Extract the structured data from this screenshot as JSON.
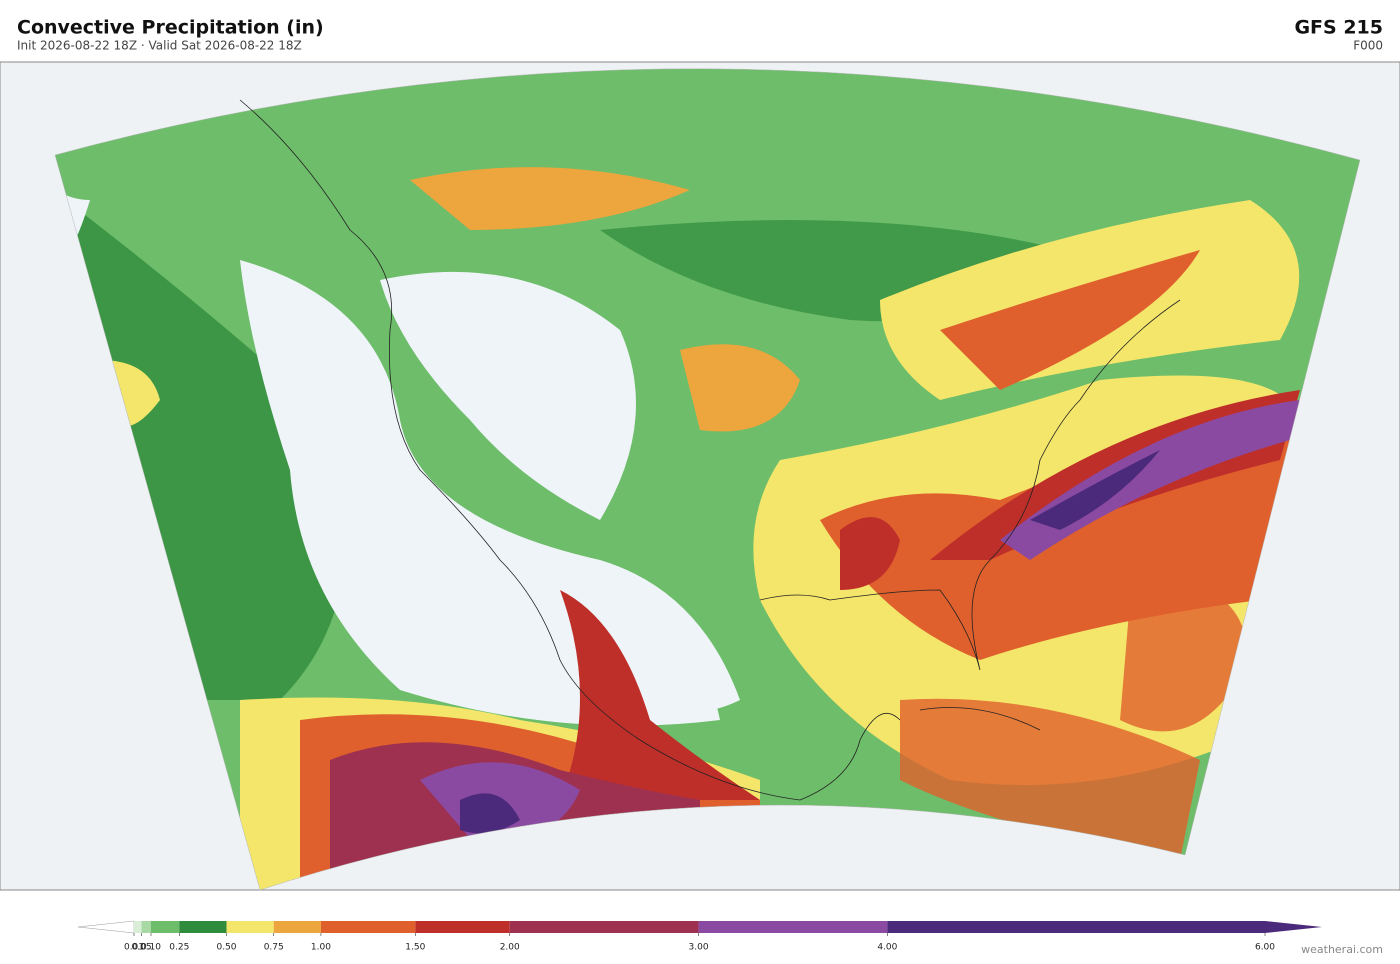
{
  "header": {
    "title": "Convective Precipitation  (in)",
    "subtitle": "Init 2026-08-22 18Z   ·   Valid Sat 2026-08-22 18Z",
    "model": "GFS  215",
    "forecast_hour": "F000"
  },
  "colorbar": {
    "lim": [
      0.01,
      6
    ],
    "ticks": [
      0.01,
      0.05,
      {
        "value": 0.1,
        "label": "0.10"
      },
      0.25,
      {
        "value": 0.5,
        "label": "0.50"
      },
      0.75,
      {
        "value": 1,
        "label": "1.00"
      },
      {
        "value": 1.5,
        "label": "1.50"
      },
      {
        "value": 2,
        "label": "2.00"
      },
      {
        "value": 3,
        "label": "3.00"
      },
      {
        "value": 4,
        "label": "4.00"
      },
      {
        "value": 6,
        "label": "6.00"
      }
    ],
    "colors": [
      "#d8eed6",
      "#a9d9a3",
      "#6dbd6a",
      "#2f8c3c",
      "#f4e66a",
      "#eda53d",
      "#e0602d",
      "#bf2f2a",
      "#9e3050",
      "#8a4aa2",
      "#4b2a7b"
    ],
    "under_color": "#ffffff",
    "over_color": "#4b2a7b"
  },
  "footer": {
    "credit": "weatherai.com"
  }
}
